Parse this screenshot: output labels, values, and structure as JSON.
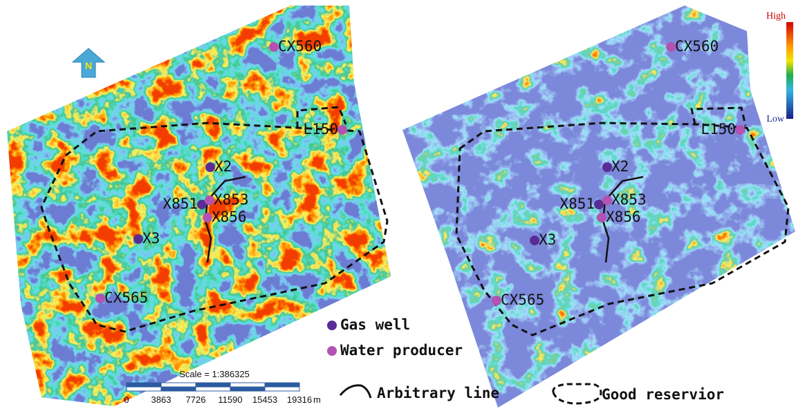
{
  "north": "N",
  "colorbar": {
    "high": "High",
    "low": "Low"
  },
  "wells": [
    {
      "label": "CX560",
      "kind": "water"
    },
    {
      "label": "L150",
      "kind": "water"
    },
    {
      "label": "X2",
      "kind": "gas"
    },
    {
      "label": "X851",
      "kind": "gas"
    },
    {
      "label": "X853",
      "kind": "water"
    },
    {
      "label": "X856",
      "kind": "water"
    },
    {
      "label": "X3",
      "kind": "gas"
    },
    {
      "label": "CX565",
      "kind": "water"
    }
  ],
  "legend": {
    "gas": "Gas well",
    "water": "Water producer",
    "line": "Arbitrary line",
    "reservoir": "Good reservior"
  },
  "scale": {
    "title": "Scale = 1:386325",
    "ticks": [
      "0",
      "3863",
      "7726",
      "11590",
      "15453",
      "19316"
    ],
    "unit": "m"
  }
}
